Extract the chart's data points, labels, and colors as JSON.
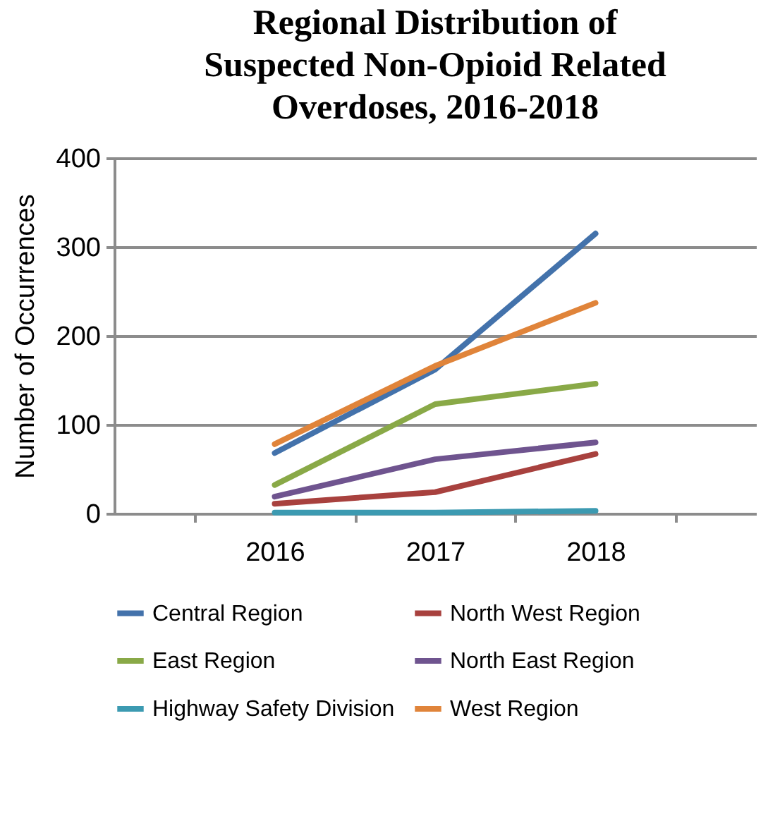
{
  "chart_data": {
    "type": "line",
    "title": "Regional Distribution of Suspected Non-Opioid Related Overdoses, 2016-2018",
    "ylabel": "Number of Occurrences",
    "categories": [
      "2016",
      "2017",
      "2018"
    ],
    "series": [
      {
        "name": "Central Region",
        "color": "#4372ab",
        "values": [
          68,
          162,
          315
        ]
      },
      {
        "name": "North West Region",
        "color": "#a8413e",
        "values": [
          11,
          24,
          67
        ]
      },
      {
        "name": "East Region",
        "color": "#89a947",
        "values": [
          32,
          123,
          146
        ]
      },
      {
        "name": "North East Region",
        "color": "#6f548f",
        "values": [
          19,
          61,
          80
        ]
      },
      {
        "name": "Highway Safety Division",
        "color": "#3c9ab1",
        "values": [
          1,
          1,
          3
        ]
      },
      {
        "name": "West Region",
        "color": "#e0843a",
        "values": [
          78,
          166,
          237
        ]
      }
    ],
    "ylim": [
      0,
      400
    ],
    "yticks": [
      0,
      100,
      200,
      300,
      400
    ],
    "grid": "y",
    "legend": "bottom",
    "marker": "none",
    "line_style": "solid"
  }
}
